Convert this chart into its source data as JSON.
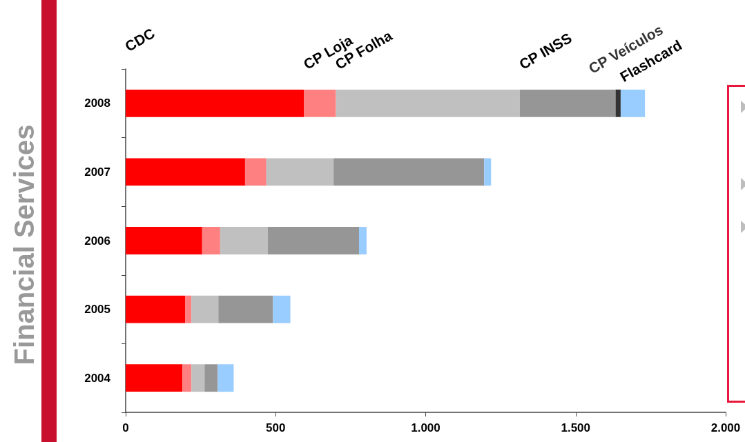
{
  "chart_data": {
    "type": "bar",
    "orientation": "horizontal",
    "stacked": true,
    "title": "Financial Services",
    "categories": [
      "2008",
      "2007",
      "2006",
      "2005",
      "2004"
    ],
    "series": [
      {
        "name": "CDC",
        "color": "#ff0000",
        "values": [
          595,
          398,
          255,
          198,
          189
        ]
      },
      {
        "name": "CP Loja",
        "color": "#ff8080",
        "values": [
          106,
          71,
          60,
          21,
          30
        ]
      },
      {
        "name": "CP Folha",
        "color": "#c0c0c0",
        "values": [
          613,
          224,
          159,
          90,
          44
        ]
      },
      {
        "name": "CP INSS",
        "color": "#969696",
        "values": [
          319,
          502,
          304,
          182,
          44
        ]
      },
      {
        "name": "CP Veículos",
        "color": "#333333",
        "values": [
          17,
          null,
          null,
          null,
          null
        ]
      },
      {
        "name": "Flashcard",
        "color": "#99ccff",
        "values": [
          81,
          23,
          25,
          58,
          53
        ]
      }
    ],
    "xlim": [
      0,
      2000
    ],
    "xticks": [
      0,
      500,
      {
        "value": 1000,
        "label": "1.000"
      },
      {
        "value": 1500,
        "label": "1.500"
      },
      {
        "value": 2000,
        "label": "2.000"
      }
    ],
    "grid": false,
    "legend": "top"
  }
}
